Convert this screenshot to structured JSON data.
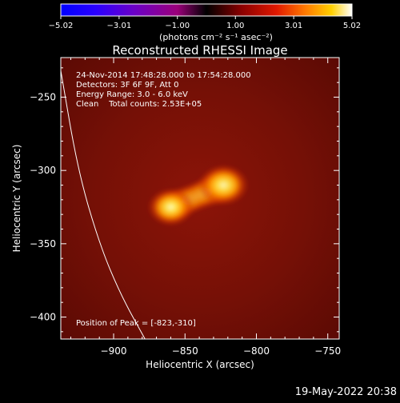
{
  "chart_data": {
    "type": "heatmap",
    "title": "Reconstructed RHESSI Image",
    "xlabel": "Heliocentric X (arcsec)",
    "ylabel": "Heliocentric Y (arcsec)",
    "xlim": [
      -937,
      -742
    ],
    "ylim": [
      -415,
      -223
    ],
    "x_ticks": [
      -900,
      -850,
      -800,
      -750
    ],
    "x_tick_labels": [
      "−900",
      "−850",
      "−800",
      "−750"
    ],
    "y_ticks": [
      -250,
      -300,
      -350,
      -400
    ],
    "y_tick_labels": [
      "−250",
      "−300",
      "−350",
      "−400"
    ],
    "colorbar": {
      "colormap": "black-blue-purple-red-orange-yellow-white",
      "range": [
        -5.02,
        5.02
      ],
      "ticks": [
        -5.02,
        -3.01,
        -1.0,
        1.0,
        3.01,
        5.02
      ],
      "tick_labels": [
        "−5.02",
        "−3.01",
        "−1.00",
        "1.00",
        "3.01",
        "5.02"
      ],
      "unit_label": "(photons cm⁻² s⁻¹ asec⁻²)"
    },
    "annotations": [
      "24-Nov-2014 17:48:28.000 to 17:54:28.000",
      "Detectors: 3F 6F 9F, Att 0",
      "Energy Range: 3.0 - 6.0 keV",
      "Clean    Total counts: 2.53E+05"
    ],
    "peak_label": "Position of Peak = [-823,-310]",
    "sources": [
      {
        "x": -823,
        "y": -310,
        "intensity": 1.0
      },
      {
        "x": -860,
        "y": -325,
        "intensity": 0.92
      }
    ],
    "limb_curve": [
      [
        -937,
        -232
      ],
      [
        -925,
        -300
      ],
      [
        -910,
        -350
      ],
      [
        -895,
        -385
      ],
      [
        -878,
        -415
      ]
    ],
    "footer_timestamp": "19-May-2022 20:38"
  }
}
